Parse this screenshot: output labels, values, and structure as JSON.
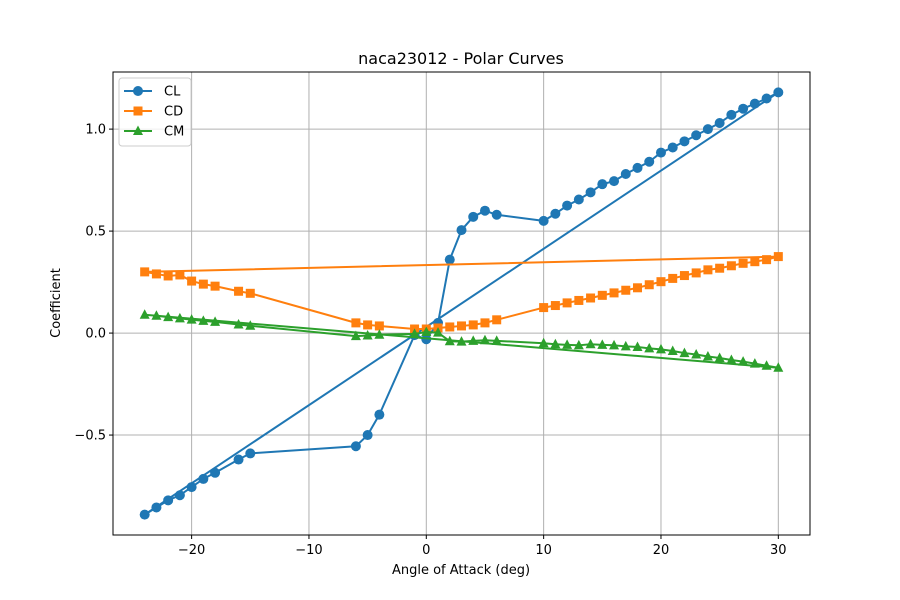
{
  "chart_data": {
    "type": "line",
    "title": "naca23012 - Polar Curves",
    "xlabel": "Angle of Attack (deg)",
    "ylabel": "Coefficient",
    "xlim": [
      -26.7,
      32.7
    ],
    "ylim": [
      -0.99,
      1.28
    ],
    "grid": true,
    "legend_position": "top-left",
    "x_ticks": [
      -20,
      -10,
      0,
      10,
      20,
      30
    ],
    "x_tick_labels": [
      "−20",
      "−10",
      "0",
      "10",
      "20",
      "30"
    ],
    "y_ticks": [
      -0.5,
      0.0,
      0.5,
      1.0
    ],
    "y_tick_labels": [
      "−0.5",
      "0.0",
      "0.5",
      "1.0"
    ],
    "x": [
      -24,
      -23,
      -22,
      -21,
      -20,
      -19,
      -18,
      -16,
      -15,
      -6,
      -5,
      -4,
      -1,
      0,
      1,
      2,
      3,
      4,
      5,
      6,
      10,
      11,
      12,
      13,
      14,
      15,
      16,
      17,
      18,
      19,
      20,
      21,
      22,
      23,
      24,
      25,
      26,
      27,
      28,
      29,
      30
    ],
    "series": [
      {
        "name": "CL",
        "color": "#1f77b4",
        "marker": "circle",
        "values": [
          -0.89,
          -0.855,
          -0.82,
          -0.795,
          -0.755,
          -0.715,
          -0.685,
          -0.62,
          -0.59,
          -0.555,
          -0.5,
          -0.4,
          -0.01,
          -0.03,
          0.05,
          0.36,
          0.505,
          0.57,
          0.6,
          0.58,
          0.55,
          0.585,
          0.625,
          0.655,
          0.69,
          0.73,
          0.745,
          0.78,
          0.81,
          0.84,
          0.885,
          0.91,
          0.94,
          0.97,
          1.0,
          1.03,
          1.07,
          1.1,
          1.125,
          1.15,
          1.18
        ]
      },
      {
        "name": "CD",
        "color": "#ff7f0e",
        "marker": "square",
        "values": [
          0.3,
          0.29,
          0.28,
          0.285,
          0.255,
          0.24,
          0.23,
          0.205,
          0.195,
          0.05,
          0.04,
          0.035,
          0.02,
          0.02,
          0.025,
          0.03,
          0.035,
          0.04,
          0.05,
          0.065,
          0.125,
          0.135,
          0.148,
          0.16,
          0.172,
          0.185,
          0.197,
          0.21,
          0.222,
          0.237,
          0.252,
          0.268,
          0.282,
          0.295,
          0.31,
          0.318,
          0.33,
          0.342,
          0.35,
          0.36,
          0.375
        ]
      },
      {
        "name": "CM",
        "color": "#2ca02c",
        "marker": "triangle",
        "values": [
          0.09,
          0.085,
          0.078,
          0.072,
          0.066,
          0.06,
          0.055,
          0.042,
          0.036,
          -0.015,
          -0.012,
          -0.008,
          -0.004,
          0.005,
          0.002,
          -0.04,
          -0.042,
          -0.038,
          -0.035,
          -0.038,
          -0.05,
          -0.055,
          -0.058,
          -0.06,
          -0.055,
          -0.058,
          -0.06,
          -0.065,
          -0.068,
          -0.075,
          -0.08,
          -0.088,
          -0.098,
          -0.105,
          -0.115,
          -0.122,
          -0.132,
          -0.14,
          -0.15,
          -0.16,
          -0.17
        ]
      }
    ]
  }
}
